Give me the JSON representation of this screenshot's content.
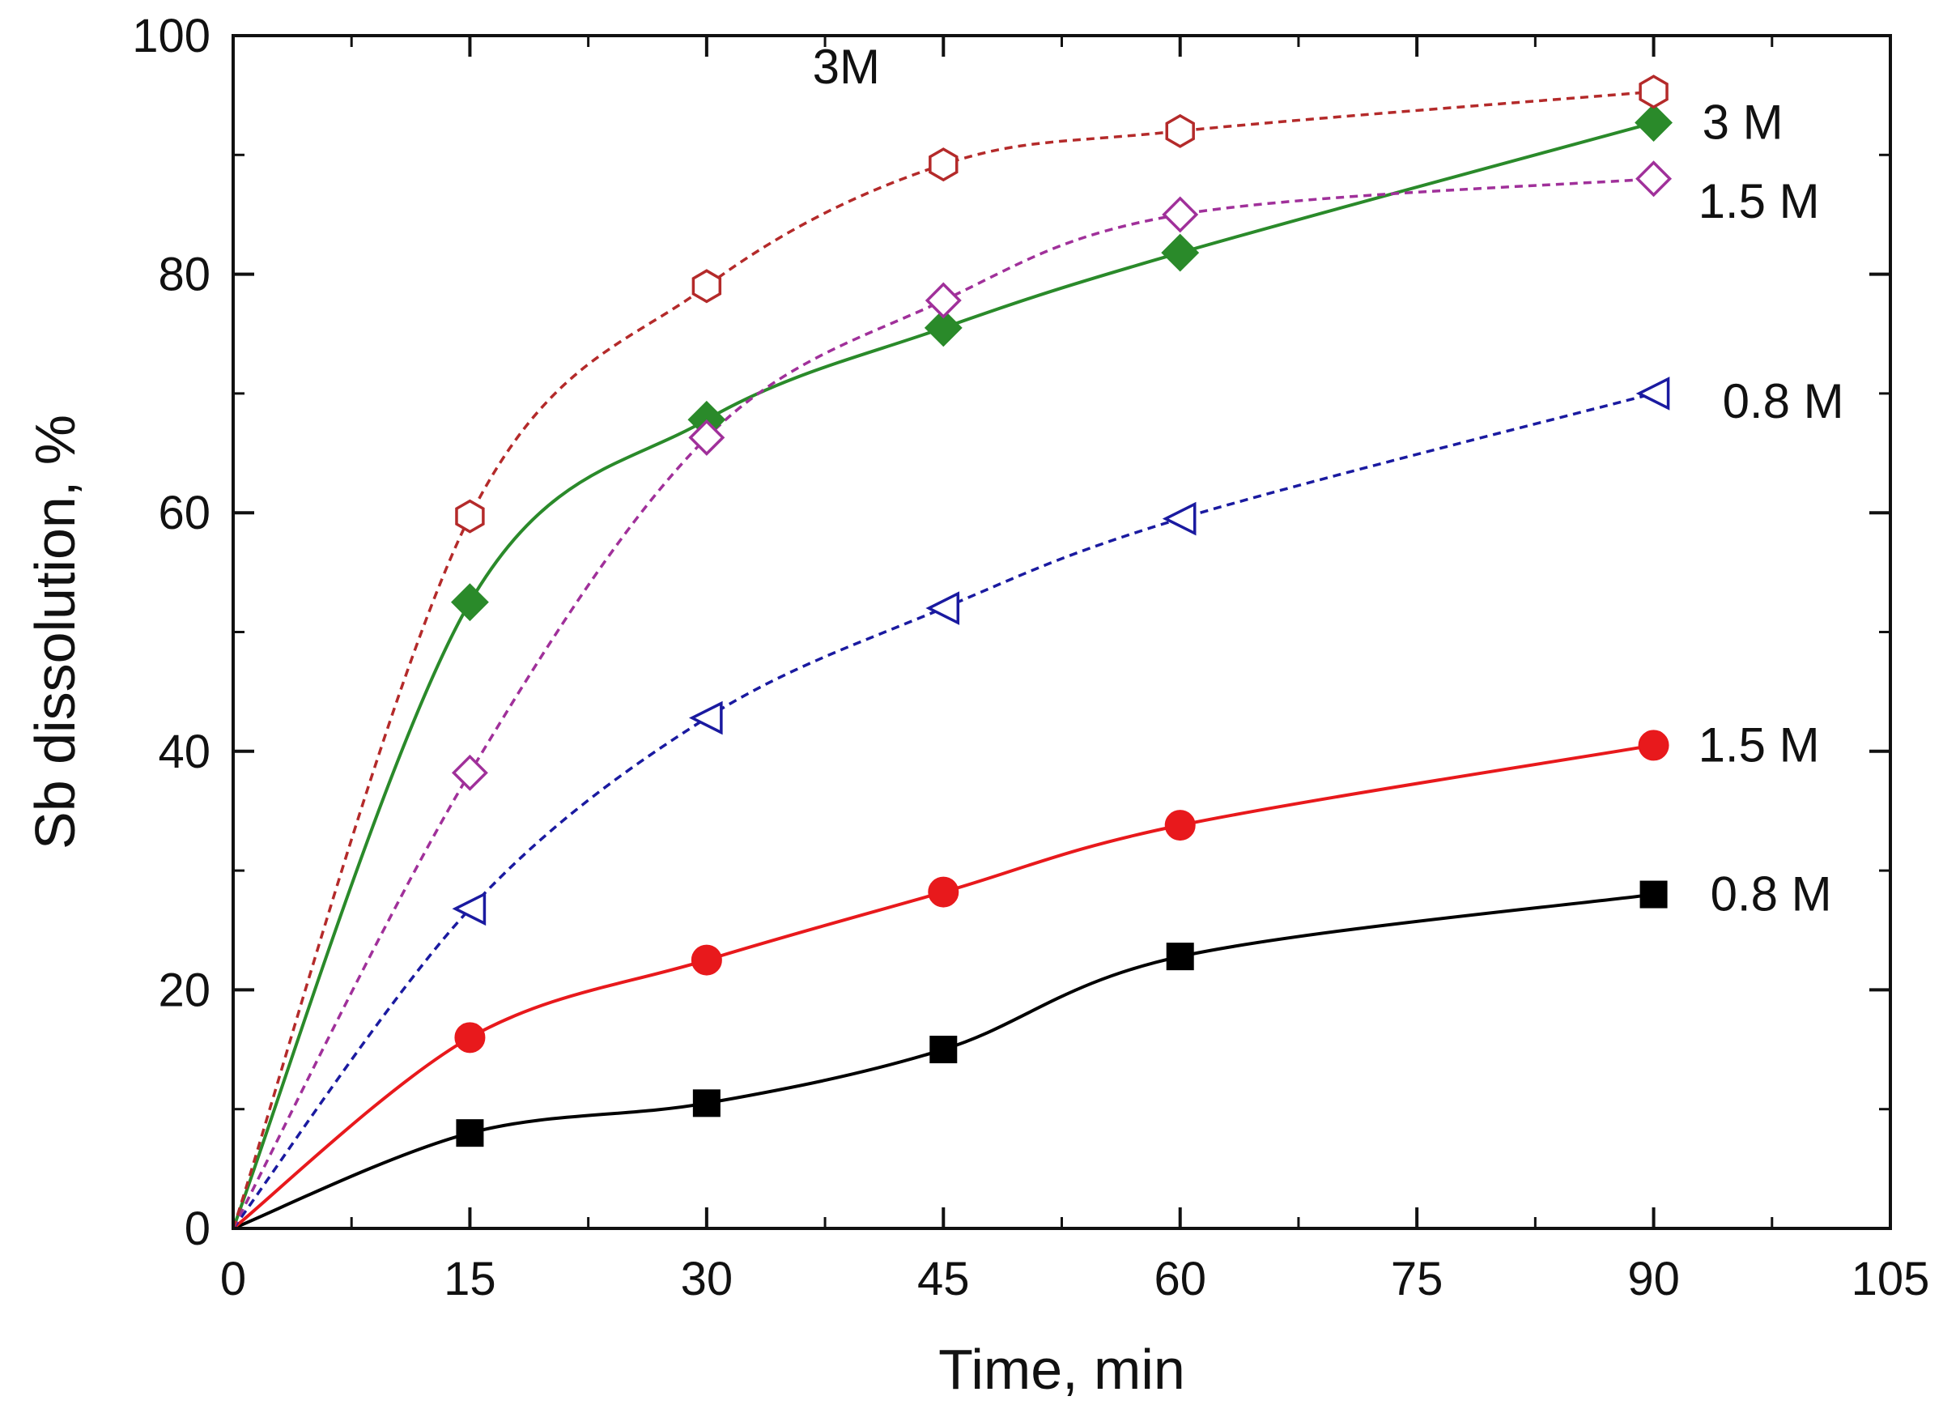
{
  "chart_data": {
    "type": "line",
    "xlabel": "Time, min",
    "ylabel": "Sb dissolution, %",
    "xlim": [
      0,
      105
    ],
    "ylim": [
      0,
      100
    ],
    "xticks": [
      0,
      15,
      30,
      45,
      60,
      75,
      90,
      105
    ],
    "xtick_labels": [
      "0",
      "15",
      "30",
      "45",
      "60",
      "75",
      "90",
      "105"
    ],
    "yticks": [
      0,
      20,
      40,
      60,
      80,
      100
    ],
    "ytick_labels": [
      "0",
      "20",
      "40",
      "60",
      "80",
      "100"
    ],
    "grid": false,
    "legend": "none",
    "series": [
      {
        "label": "0.8 M",
        "marker": "square",
        "filled": true,
        "line": "solid",
        "color": "#000000",
        "x": [
          0,
          15,
          30,
          45,
          60,
          90
        ],
        "y": [
          0,
          8,
          10.5,
          15,
          22.8,
          28
        ]
      },
      {
        "label": "1.5 M",
        "marker": "circle",
        "filled": true,
        "line": "solid",
        "color": "#e8191c",
        "x": [
          0,
          15,
          30,
          45,
          60,
          90
        ],
        "y": [
          0,
          16,
          22.5,
          28.2,
          33.8,
          40.5
        ]
      },
      {
        "label": "3 M",
        "marker": "diamond",
        "filled": true,
        "line": "solid",
        "color": "#2a8a2a",
        "x": [
          0,
          15,
          30,
          45,
          60,
          90
        ],
        "y": [
          0,
          52.5,
          67.8,
          75.5,
          81.8,
          92.7
        ]
      },
      {
        "label": "0.8 M",
        "marker": "triangle-left",
        "filled": false,
        "line": "dashed",
        "color": "#1a1aa0",
        "x": [
          0,
          15,
          30,
          45,
          60,
          90
        ],
        "y": [
          0,
          26.8,
          42.8,
          52,
          59.5,
          70
        ]
      },
      {
        "label": "1.5 M",
        "marker": "diamond",
        "filled": false,
        "line": "dashed",
        "color": "#a0309a",
        "x": [
          0,
          15,
          30,
          45,
          60,
          90
        ],
        "y": [
          0,
          38.2,
          66.3,
          77.8,
          85,
          88
        ]
      },
      {
        "label": "3M",
        "marker": "hexagon",
        "filled": false,
        "line": "dashed",
        "color": "#b42a2a",
        "x": [
          0,
          15,
          30,
          45,
          60,
          90
        ],
        "y": [
          0,
          59.7,
          79,
          89.2,
          92,
          95.3
        ]
      }
    ],
    "annotations": [
      {
        "text": "3M",
        "series_index": 5
      },
      {
        "text": "3 M",
        "series_index": 2
      },
      {
        "text": "1.5 M",
        "series_index": 4
      },
      {
        "text": "0.8 M",
        "series_index": 3
      },
      {
        "text": "1.5 M",
        "series_index": 1
      },
      {
        "text": "0.8 M",
        "series_index": 0
      }
    ]
  }
}
